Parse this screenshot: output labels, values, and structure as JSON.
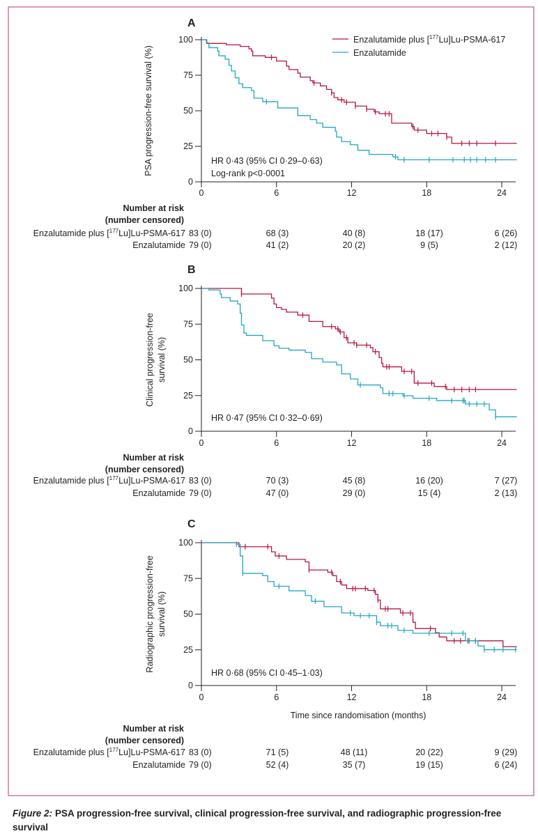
{
  "caption": {
    "label": "Figure 2:",
    "text": "PSA progression-free survival, clinical progression-free survival, and radiographic progression-free",
    "text2": "survival"
  },
  "colors": {
    "combo": "#b5173f",
    "enza": "#21a6c2",
    "frame": "#c9567b",
    "axis": "#231f20"
  },
  "legend": {
    "combo": {
      "prefix": "Enzalutamide plus [",
      "sup": "177",
      "suffix": "Lu]Lu-PSMA-617"
    },
    "enza": "Enzalutamide"
  },
  "risk": {
    "header1": "Number at risk",
    "header2": "(number censored)",
    "combo_label": {
      "prefix": "Enzalutamide plus [",
      "sup": "177",
      "suffix": "Lu]Lu-PSMA-617"
    },
    "enza_label": "Enzalutamide"
  },
  "chart_data": [
    {
      "type": "line",
      "panel": "A",
      "ylabel": "PSA progression-free survival (%)",
      "xlabel": "",
      "xlim": [
        0,
        25.2
      ],
      "ylim": [
        0,
        100
      ],
      "xticks": [
        "0",
        "6",
        "12",
        "18",
        "24"
      ],
      "yticks": [
        "0",
        "25",
        "50",
        "75",
        "100"
      ],
      "annotations": [
        "HR 0·43 (95% CI 0·29–0·63)",
        "Log-rank p<0·0001"
      ],
      "legend": "top-right",
      "series": [
        {
          "name": "Enzalutamide plus [177Lu]Lu-PSMA-617",
          "key": "combo",
          "steps": [
            [
              0,
              100
            ],
            [
              0.43,
              97.4
            ],
            [
              2.0,
              96.4
            ],
            [
              3.1,
              95.3
            ],
            [
              3.8,
              93.6
            ],
            [
              4.0,
              92
            ],
            [
              4.1,
              88.7
            ],
            [
              5.1,
              87.6
            ],
            [
              6.0,
              85
            ],
            [
              6.8,
              81.4
            ],
            [
              7.0,
              79
            ],
            [
              7.7,
              76.5
            ],
            [
              7.9,
              73.7
            ],
            [
              8.7,
              71.2
            ],
            [
              8.9,
              69.6
            ],
            [
              9.5,
              67.5
            ],
            [
              10.0,
              65
            ],
            [
              10.4,
              62.6
            ],
            [
              10.6,
              59.3
            ],
            [
              10.9,
              57.7
            ],
            [
              11.4,
              56
            ],
            [
              12.3,
              53.3
            ],
            [
              13.2,
              51.1
            ],
            [
              13.8,
              49.2
            ],
            [
              14.2,
              47.9
            ],
            [
              15.2,
              41.3
            ],
            [
              16.8,
              38.9
            ],
            [
              17.0,
              36.4
            ],
            [
              18.0,
              34
            ],
            [
              19.6,
              31.5
            ],
            [
              20.0,
              27.1
            ]
          ],
          "censored": [
            5.6,
            9.0,
            10.4,
            11.2,
            11.6,
            12.3,
            13.2,
            13.9,
            14.7,
            15.0,
            16.9,
            17.3,
            18.4,
            18.9,
            19.6,
            20.8,
            21.4,
            22.0,
            23.5
          ],
          "at_risk": [
            "83 (0)",
            "68 (3)",
            "40 (8)",
            "18 (17)",
            "6 (26)"
          ]
        },
        {
          "name": "Enzalutamide",
          "key": "enza",
          "steps": [
            [
              0,
              100
            ],
            [
              0.4,
              97.7
            ],
            [
              0.6,
              94.4
            ],
            [
              1.3,
              92
            ],
            [
              1.4,
              88.7
            ],
            [
              1.9,
              86.3
            ],
            [
              2.2,
              82
            ],
            [
              2.4,
              78
            ],
            [
              2.7,
              73.2
            ],
            [
              3.0,
              69
            ],
            [
              3.3,
              66.3
            ],
            [
              4.0,
              64.2
            ],
            [
              4.2,
              58.9
            ],
            [
              4.9,
              56.4
            ],
            [
              6.1,
              52
            ],
            [
              7.7,
              46.6
            ],
            [
              8.7,
              43.8
            ],
            [
              9.2,
              41.3
            ],
            [
              9.7,
              38.4
            ],
            [
              10.7,
              35.6
            ],
            [
              10.8,
              31.5
            ],
            [
              11.2,
              28.3
            ],
            [
              11.9,
              26.1
            ],
            [
              12.5,
              22.2
            ],
            [
              13.4,
              19.3
            ],
            [
              15.3,
              17.6
            ],
            [
              15.7,
              15.5
            ]
          ],
          "censored": [
            5.2,
            15.5,
            16.2,
            18.2,
            20.1,
            21.0,
            21.5,
            22.0,
            22.7,
            23.5
          ],
          "at_risk": [
            "79 (0)",
            "41 (2)",
            "20 (2)",
            "9 (5)",
            "2 (12)"
          ]
        }
      ]
    },
    {
      "type": "line",
      "panel": "B",
      "ylabel": "Clinical progression-free survival (%)",
      "ylabel_lines": [
        "Clinical progression-free",
        "survival (%)"
      ],
      "xlabel": "",
      "xlim": [
        0,
        25.2
      ],
      "ylim": [
        0,
        100
      ],
      "xticks": [
        "0",
        "6",
        "12",
        "18",
        "24"
      ],
      "yticks": [
        "0",
        "25",
        "50",
        "75",
        "100"
      ],
      "annotations": [
        "HR 0·47 (95% CI 0·32–0·69)"
      ],
      "series": [
        {
          "name": "Enzalutamide plus [177Lu]Lu-PSMA-617",
          "key": "combo",
          "steps": [
            [
              0,
              100
            ],
            [
              3.2,
              96.1
            ],
            [
              5.6,
              93.2
            ],
            [
              5.8,
              89.1
            ],
            [
              6.0,
              86.6
            ],
            [
              6.4,
              85.3
            ],
            [
              6.8,
              83.4
            ],
            [
              7.7,
              81.3
            ],
            [
              8.6,
              76.9
            ],
            [
              9.7,
              73.3
            ],
            [
              10.7,
              71.7
            ],
            [
              11.0,
              69.5
            ],
            [
              11.4,
              65.5
            ],
            [
              11.7,
              61.9
            ],
            [
              12.4,
              60.3
            ],
            [
              13.5,
              58.5
            ],
            [
              13.7,
              55.7
            ],
            [
              14.2,
              51.6
            ],
            [
              14.4,
              47.6
            ],
            [
              14.5,
              45.1
            ],
            [
              16.0,
              41.9
            ],
            [
              17.0,
              33.7
            ],
            [
              18.6,
              31.3
            ],
            [
              19.6,
              29.2
            ]
          ],
          "censored": [
            3.2,
            8.1,
            10.4,
            10.9,
            11.1,
            11.6,
            12.2,
            12.4,
            13.2,
            13.9,
            14.8,
            15.0,
            16.2,
            16.8,
            17.3,
            18.4,
            19.5,
            20.2,
            20.8,
            21.4,
            21.9
          ],
          "at_risk": [
            "83 (0)",
            "70 (3)",
            "45 (8)",
            "16 (20)",
            "7 (27)"
          ]
        },
        {
          "name": "Enzalutamide",
          "key": "enza",
          "steps": [
            [
              0,
              100
            ],
            [
              0.6,
              98.9
            ],
            [
              1.5,
              96
            ],
            [
              1.6,
              93.6
            ],
            [
              2.3,
              91.2
            ],
            [
              2.9,
              89.1
            ],
            [
              3.1,
              82.6
            ],
            [
              3.2,
              74.4
            ],
            [
              3.4,
              68.7
            ],
            [
              3.6,
              67.1
            ],
            [
              4.9,
              63.4
            ],
            [
              5.8,
              59.8
            ],
            [
              6.2,
              58.1
            ],
            [
              7.0,
              56.8
            ],
            [
              8.3,
              55.2
            ],
            [
              8.8,
              50.8
            ],
            [
              9.7,
              48.4
            ],
            [
              10.8,
              46.4
            ],
            [
              11.2,
              40.2
            ],
            [
              11.9,
              36.6
            ],
            [
              12.5,
              32.4
            ],
            [
              14.3,
              30.5
            ],
            [
              14.5,
              26.4
            ],
            [
              16.1,
              24.8
            ],
            [
              16.9,
              23.1
            ],
            [
              18.8,
              21.5
            ],
            [
              21.1,
              19.1
            ],
            [
              23.0,
              15
            ],
            [
              23.5,
              10.1
            ]
          ],
          "censored": [
            12.7,
            15.0,
            15.3,
            16.2,
            18.2,
            20.0,
            20.9,
            21.0,
            21.4,
            22.0,
            22.6,
            23.5
          ],
          "at_risk": [
            "79 (0)",
            "47 (0)",
            "29 (0)",
            "15 (4)",
            "2 (13)"
          ]
        }
      ]
    },
    {
      "type": "line",
      "panel": "C",
      "ylabel": "Radiographic progression-free survival (%)",
      "ylabel_lines": [
        "Radiographic progression-free",
        "survival (%)"
      ],
      "xlabel": "Time since randomisation (months)",
      "xlim": [
        0,
        25.2
      ],
      "ylim": [
        0,
        100
      ],
      "xticks": [
        "0",
        "6",
        "12",
        "18",
        "24"
      ],
      "yticks": [
        "0",
        "25",
        "50",
        "75",
        "100"
      ],
      "annotations": [
        "HR 0·68 (95% CI 0·45–1·03)"
      ],
      "series": [
        {
          "name": "Enzalutamide plus [177Lu]Lu-PSMA-617",
          "key": "combo",
          "steps": [
            [
              0,
              100
            ],
            [
              3.0,
              97.2
            ],
            [
              5.6,
              93.6
            ],
            [
              5.9,
              90.7
            ],
            [
              6.8,
              88.3
            ],
            [
              8.3,
              86.6
            ],
            [
              8.6,
              80.9
            ],
            [
              10.1,
              79.3
            ],
            [
              10.5,
              76.9
            ],
            [
              10.8,
              72.8
            ],
            [
              11.2,
              70.4
            ],
            [
              11.6,
              67.9
            ],
            [
              13.3,
              66.6
            ],
            [
              13.9,
              63.8
            ],
            [
              14.1,
              59.8
            ],
            [
              14.3,
              53.7
            ],
            [
              15.9,
              50.8
            ],
            [
              16.9,
              44.3
            ],
            [
              17.1,
              39.9
            ],
            [
              18.7,
              37
            ],
            [
              19.0,
              34
            ],
            [
              19.6,
              31.3
            ],
            [
              24.1,
              27.2
            ]
          ],
          "censored": [
            0,
            3.5,
            5.3,
            6.2,
            8.6,
            10.4,
            11.1,
            12.1,
            12.3,
            13.1,
            13.8,
            14.1,
            14.7,
            14.9,
            16.1,
            16.7,
            18.3,
            20.2,
            20.7,
            21.3,
            21.9
          ],
          "at_risk": [
            "83 (0)",
            "71 (5)",
            "48 (11)",
            "20 (22)",
            "9 (29)"
          ]
        },
        {
          "name": "Enzalutamide",
          "key": "enza",
          "steps": [
            [
              0,
              100
            ],
            [
              2.8,
              98.9
            ],
            [
              3.1,
              90.7
            ],
            [
              3.3,
              78.5
            ],
            [
              4.9,
              76.9
            ],
            [
              5.3,
              72.8
            ],
            [
              5.8,
              69.5
            ],
            [
              7.0,
              66.3
            ],
            [
              8.3,
              63
            ],
            [
              8.8,
              59
            ],
            [
              9.8,
              55.2
            ],
            [
              11.2,
              50.8
            ],
            [
              12.2,
              48.9
            ],
            [
              14.0,
              44.3
            ],
            [
              14.3,
              41.9
            ],
            [
              15.7,
              38.6
            ],
            [
              16.9,
              36.6
            ],
            [
              21.1,
              31.3
            ],
            [
              22.1,
              27.7
            ],
            [
              22.6,
              25.1
            ]
          ],
          "censored": [
            2.8,
            3.3,
            6.2,
            9.1,
            11.9,
            12.7,
            13.4,
            14.0,
            14.9,
            15.2,
            16.2,
            18.2,
            20.0,
            20.9,
            21.4,
            21.9,
            22.6,
            23.4,
            24.1,
            25.1
          ],
          "at_risk": [
            "79 (0)",
            "52 (4)",
            "35 (7)",
            "19 (15)",
            "6 (24)"
          ]
        }
      ]
    }
  ]
}
